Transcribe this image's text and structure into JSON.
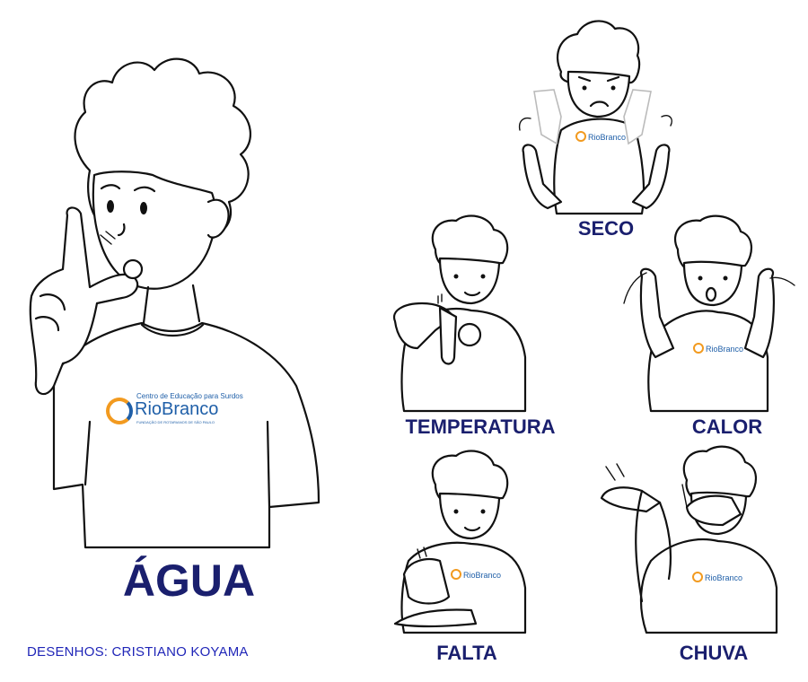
{
  "main_sign": {
    "word": "ÁGUA"
  },
  "credits": "DESENHOS: CRISTIANO KOYAMA",
  "logo": {
    "line1": "Centro de Educação para Surdos",
    "name": "RioBranco",
    "line3": "FUNDAÇÃO DE ROTARIANOS DE SÃO PAULO",
    "colors": {
      "orange": "#f29a1f",
      "blue": "#1f5fa8"
    }
  },
  "signs": [
    {
      "word": "SECO"
    },
    {
      "word": "TEMPERATURA"
    },
    {
      "word": "CALOR"
    },
    {
      "word": "FALTA"
    },
    {
      "word": "CHUVA"
    }
  ],
  "colors": {
    "label": "#1a1f6e",
    "credit": "#2026b8"
  }
}
